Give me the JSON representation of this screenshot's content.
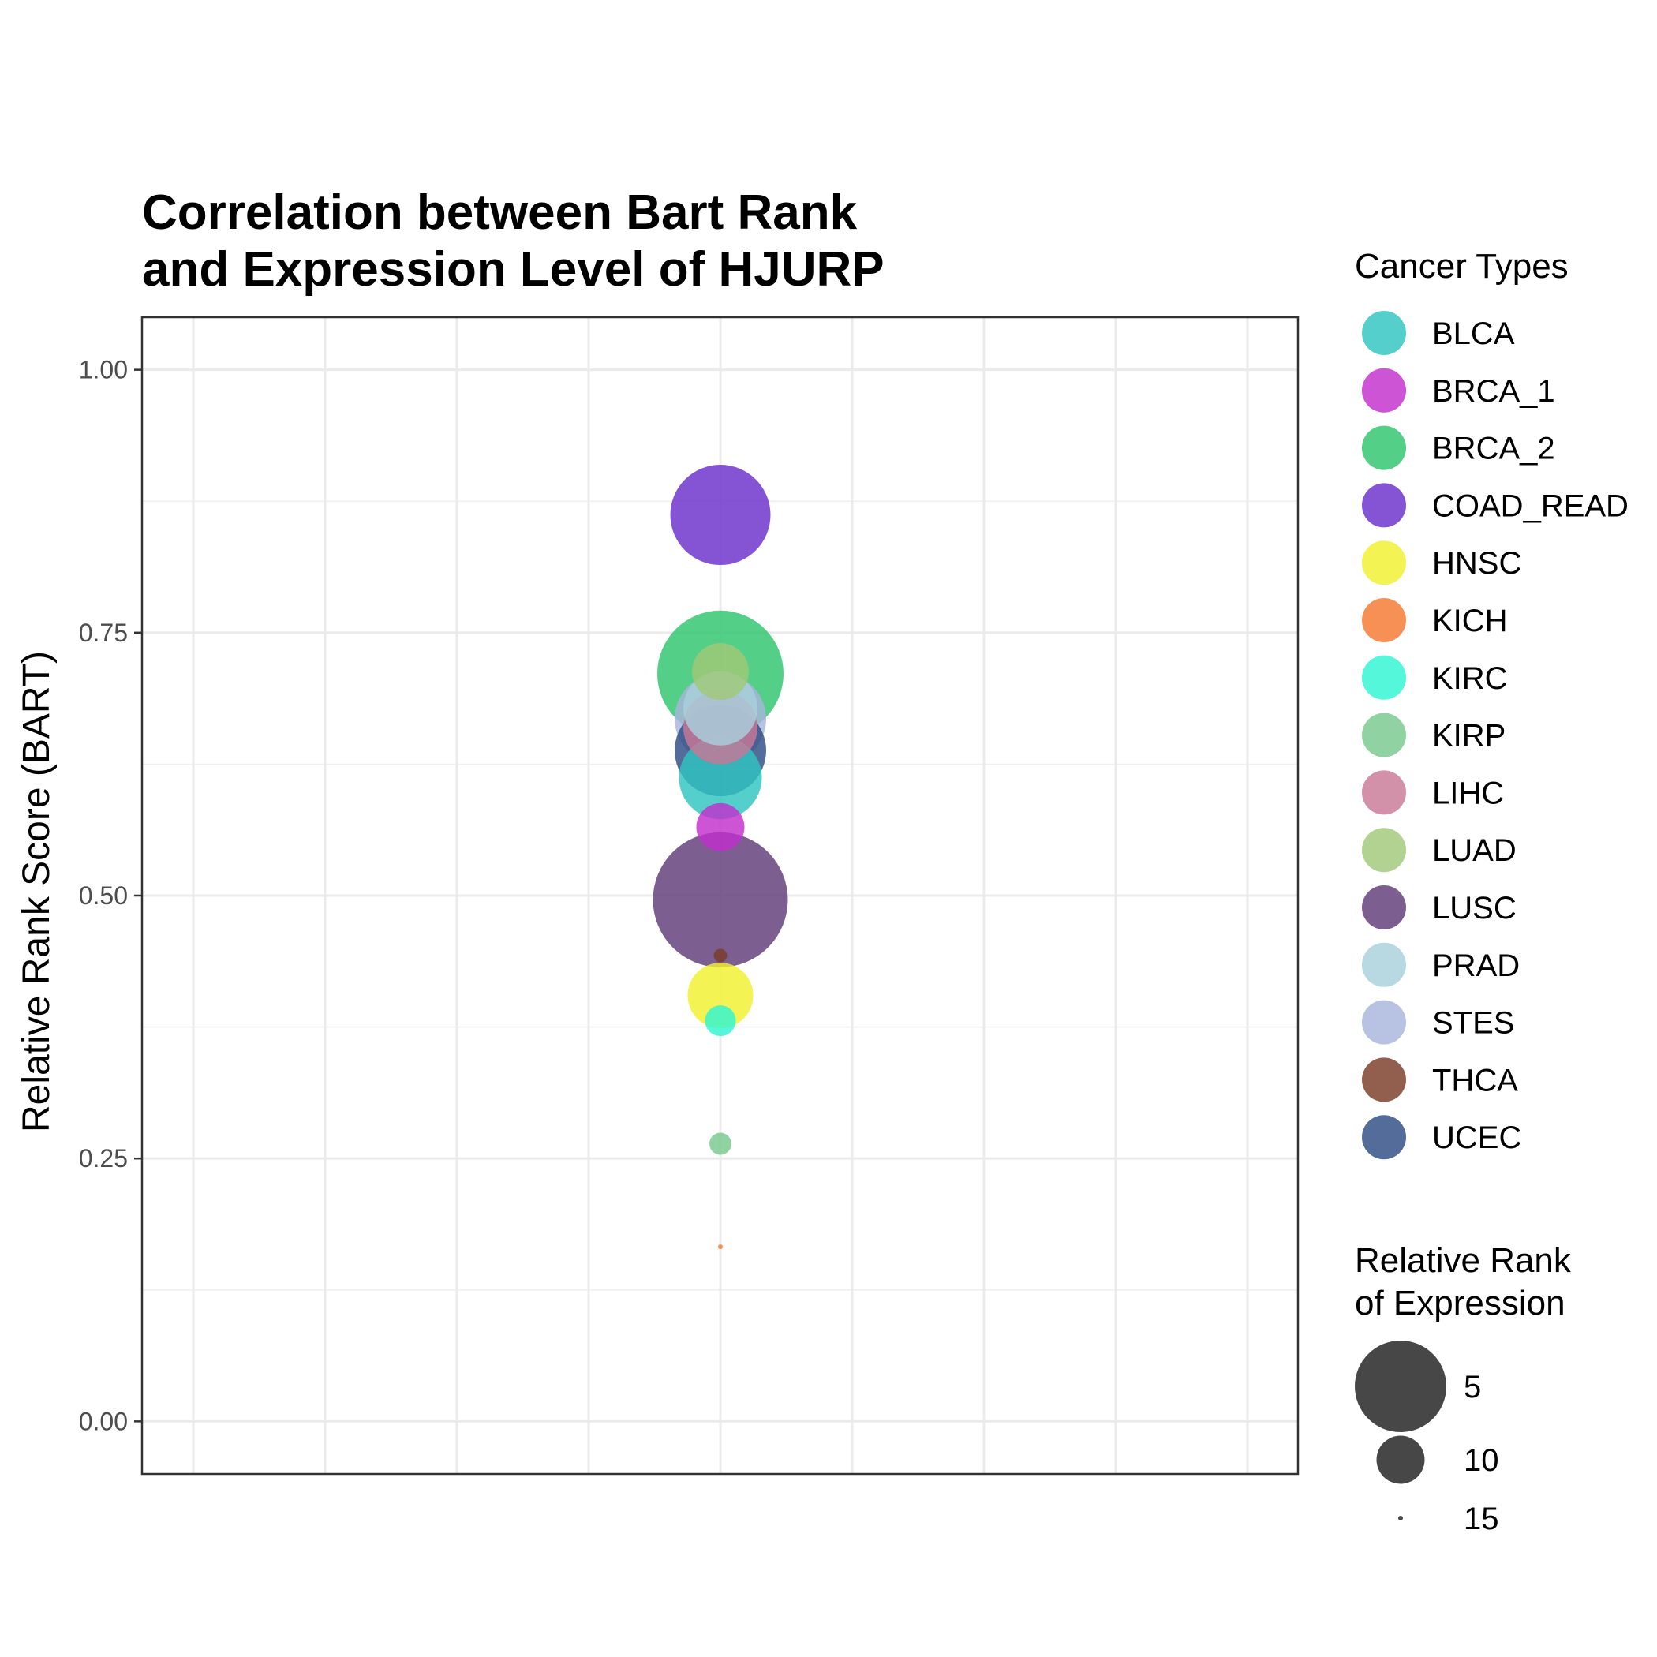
{
  "chart_data": {
    "type": "scatter",
    "title": [
      "Correlation between Bart Rank",
      "and Expression Level of HJURP"
    ],
    "xlabel": "",
    "ylabel": "Relative Rank Score (BART)",
    "ylim": [
      -0.05,
      1.05
    ],
    "y_ticks": [
      0.0,
      0.25,
      0.5,
      0.75,
      1.0
    ],
    "y_tick_labels": [
      "0.00",
      "0.25",
      "0.50",
      "0.75",
      "1.00"
    ],
    "grid": true,
    "legend_position": "right",
    "color_legend_title": "Cancer Types",
    "size_legend_title": [
      "Relative Rank",
      "of Expression"
    ],
    "series": [
      {
        "name": "BLCA",
        "color": "#2EC4C0",
        "y": 0.612,
        "expression_rank": 6
      },
      {
        "name": "BRCA_1",
        "color": "#C12ECC",
        "y": 0.565,
        "expression_rank": 10
      },
      {
        "name": "BRCA_2",
        "color": "#2EC46E",
        "y": 0.711,
        "expression_rank": 1
      },
      {
        "name": "COAD_READ",
        "color": "#6A2ECC",
        "y": 0.862,
        "expression_rank": 4
      },
      {
        "name": "HNSC",
        "color": "#F0F02E",
        "y": 0.405,
        "expression_rank": 8
      },
      {
        "name": "KICH",
        "color": "#F5782E",
        "y": 0.166,
        "expression_rank": 15
      },
      {
        "name": "KIRC",
        "color": "#2EF5D2",
        "y": 0.381,
        "expression_rank": 12
      },
      {
        "name": "KIRP",
        "color": "#78C88C",
        "y": 0.264,
        "expression_rank": 13
      },
      {
        "name": "LIHC",
        "color": "#C87896",
        "y": 0.66,
        "expression_rank": 7
      },
      {
        "name": "LUAD",
        "color": "#A0C878",
        "y": 0.713,
        "expression_rank": 9
      },
      {
        "name": "LUSC",
        "color": "#5F3C78",
        "y": 0.496,
        "expression_rank": 0
      },
      {
        "name": "PRAD",
        "color": "#A8D0DC",
        "y": 0.678,
        "expression_rank": 7
      },
      {
        "name": "STES",
        "color": "#A8B4DC",
        "y": 0.668,
        "expression_rank": 5
      },
      {
        "name": "THCA",
        "color": "#7A3C28",
        "y": 0.443,
        "expression_rank": 14
      },
      {
        "name": "UCEC",
        "color": "#2E4C82",
        "y": 0.638,
        "expression_rank": 5
      }
    ],
    "size_legend": [
      {
        "label": "5",
        "expression_rank": 5
      },
      {
        "label": "10",
        "expression_rank": 10
      },
      {
        "label": "15",
        "expression_rank": 15
      }
    ]
  }
}
